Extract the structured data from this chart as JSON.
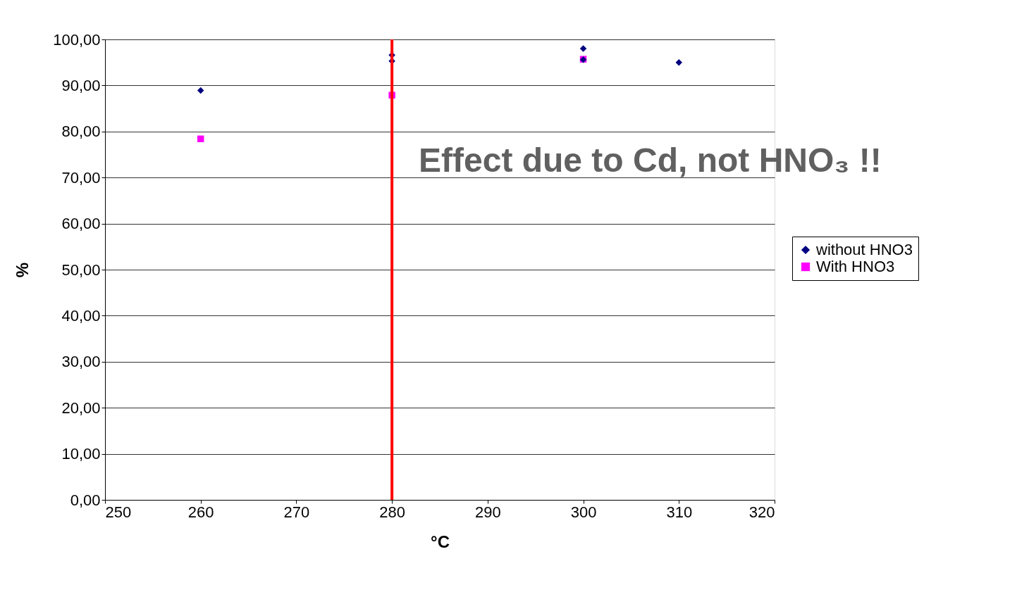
{
  "chart_data": {
    "type": "scatter",
    "xlabel": "°C",
    "ylabel": "%",
    "series": [
      {
        "name": "without HNO3",
        "color": "#000080",
        "marker": "diamond",
        "x": [
          260,
          280,
          280,
          300,
          300,
          310
        ],
        "values": [
          88.9,
          96.6,
          95.3,
          98.0,
          95.6,
          95.0
        ]
      },
      {
        "name": "With HNO3",
        "color": "#ff00ff",
        "marker": "square",
        "x": [
          260,
          280,
          300
        ],
        "values": [
          78.4,
          87.9,
          95.7
        ]
      }
    ],
    "xlim": [
      250,
      320
    ],
    "xticks": [
      250,
      260,
      270,
      280,
      290,
      300,
      310,
      320
    ],
    "ylim": [
      0,
      100
    ],
    "yticks": [
      {
        "value": 0,
        "label": "0,00"
      },
      {
        "value": 10,
        "label": "10,00"
      },
      {
        "value": 20,
        "label": "20,00"
      },
      {
        "value": 30,
        "label": "30,00"
      },
      {
        "value": 40,
        "label": "40,00"
      },
      {
        "value": 50,
        "label": "50,00"
      },
      {
        "value": 60,
        "label": "60,00"
      },
      {
        "value": 70,
        "label": "70,00"
      },
      {
        "value": 80,
        "label": "80,00"
      },
      {
        "value": 90,
        "label": "90,00"
      },
      {
        "value": 100,
        "label": "100,00"
      }
    ],
    "grid": "y",
    "legend": "right",
    "ref_lines": [
      {
        "axis": "x",
        "value": 280,
        "color": "#ff0000"
      }
    ],
    "annotations": [
      "Effect due to Cd, not HNO₃ !!"
    ]
  }
}
